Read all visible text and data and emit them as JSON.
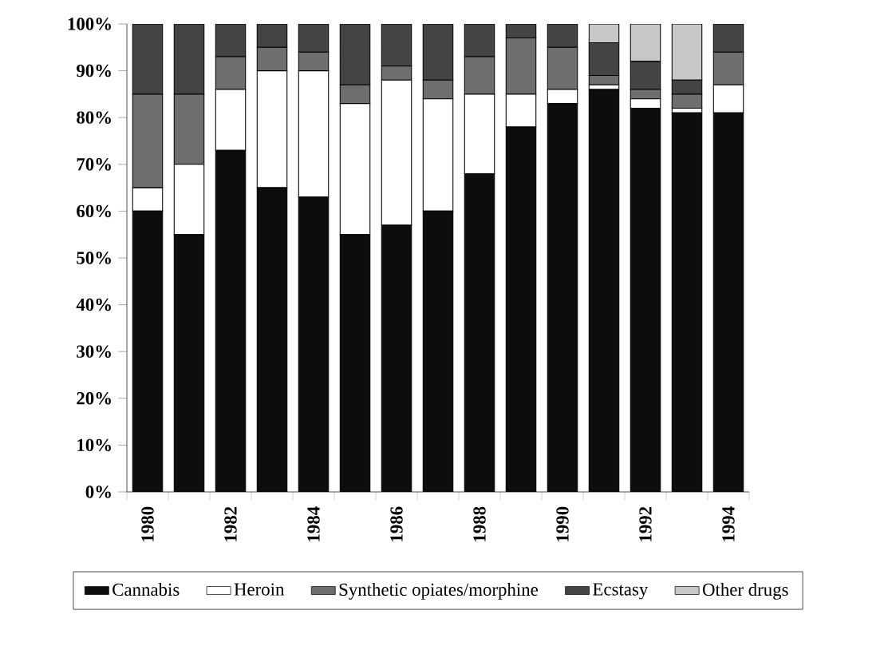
{
  "chart_data": {
    "type": "bar",
    "stacked": true,
    "categories": [
      "1980",
      null,
      "1982",
      null,
      "1984",
      null,
      "1986",
      null,
      "1988",
      null,
      "1990",
      null,
      "1992",
      null,
      "1994"
    ],
    "series": [
      {
        "name": "Cannabis",
        "color": "#0d0d0d",
        "values": [
          60,
          55,
          73,
          65,
          63,
          55,
          57,
          60,
          68,
          78,
          83,
          86,
          82,
          81,
          81
        ]
      },
      {
        "name": "Heroin",
        "color": "#ffffff",
        "values": [
          5,
          15,
          13,
          25,
          27,
          28,
          31,
          24,
          17,
          7,
          3,
          1,
          2,
          1,
          6
        ]
      },
      {
        "name": "Synthetic opiates/morphine",
        "color": "#6e6e6e",
        "values": [
          20,
          15,
          7,
          5,
          4,
          4,
          3,
          4,
          8,
          12,
          9,
          2,
          2,
          3,
          7
        ]
      },
      {
        "name": "Ecstasy",
        "color": "#444444",
        "values": [
          15,
          15,
          7,
          5,
          6,
          13,
          9,
          12,
          7,
          3,
          5,
          7,
          6,
          3,
          6
        ]
      },
      {
        "name": "Other drugs",
        "color": "#c8c8c8",
        "values": [
          0,
          0,
          0,
          0,
          0,
          0,
          0,
          0,
          0,
          0,
          0,
          4,
          8,
          12,
          0
        ]
      }
    ],
    "ylim": [
      0,
      100
    ],
    "yticks": [
      {
        "value": 0,
        "label": "0%"
      },
      {
        "value": 10,
        "label": "10%"
      },
      {
        "value": 20,
        "label": "20%"
      },
      {
        "value": 30,
        "label": "30%"
      },
      {
        "value": 40,
        "label": "40%"
      },
      {
        "value": 50,
        "label": "50%"
      },
      {
        "value": 60,
        "label": "60%"
      },
      {
        "value": 70,
        "label": "70%"
      },
      {
        "value": 80,
        "label": "80%"
      },
      {
        "value": 90,
        "label": "90%"
      },
      {
        "value": 100,
        "label": "100%"
      }
    ],
    "legend": "bottom",
    "grid": false
  }
}
